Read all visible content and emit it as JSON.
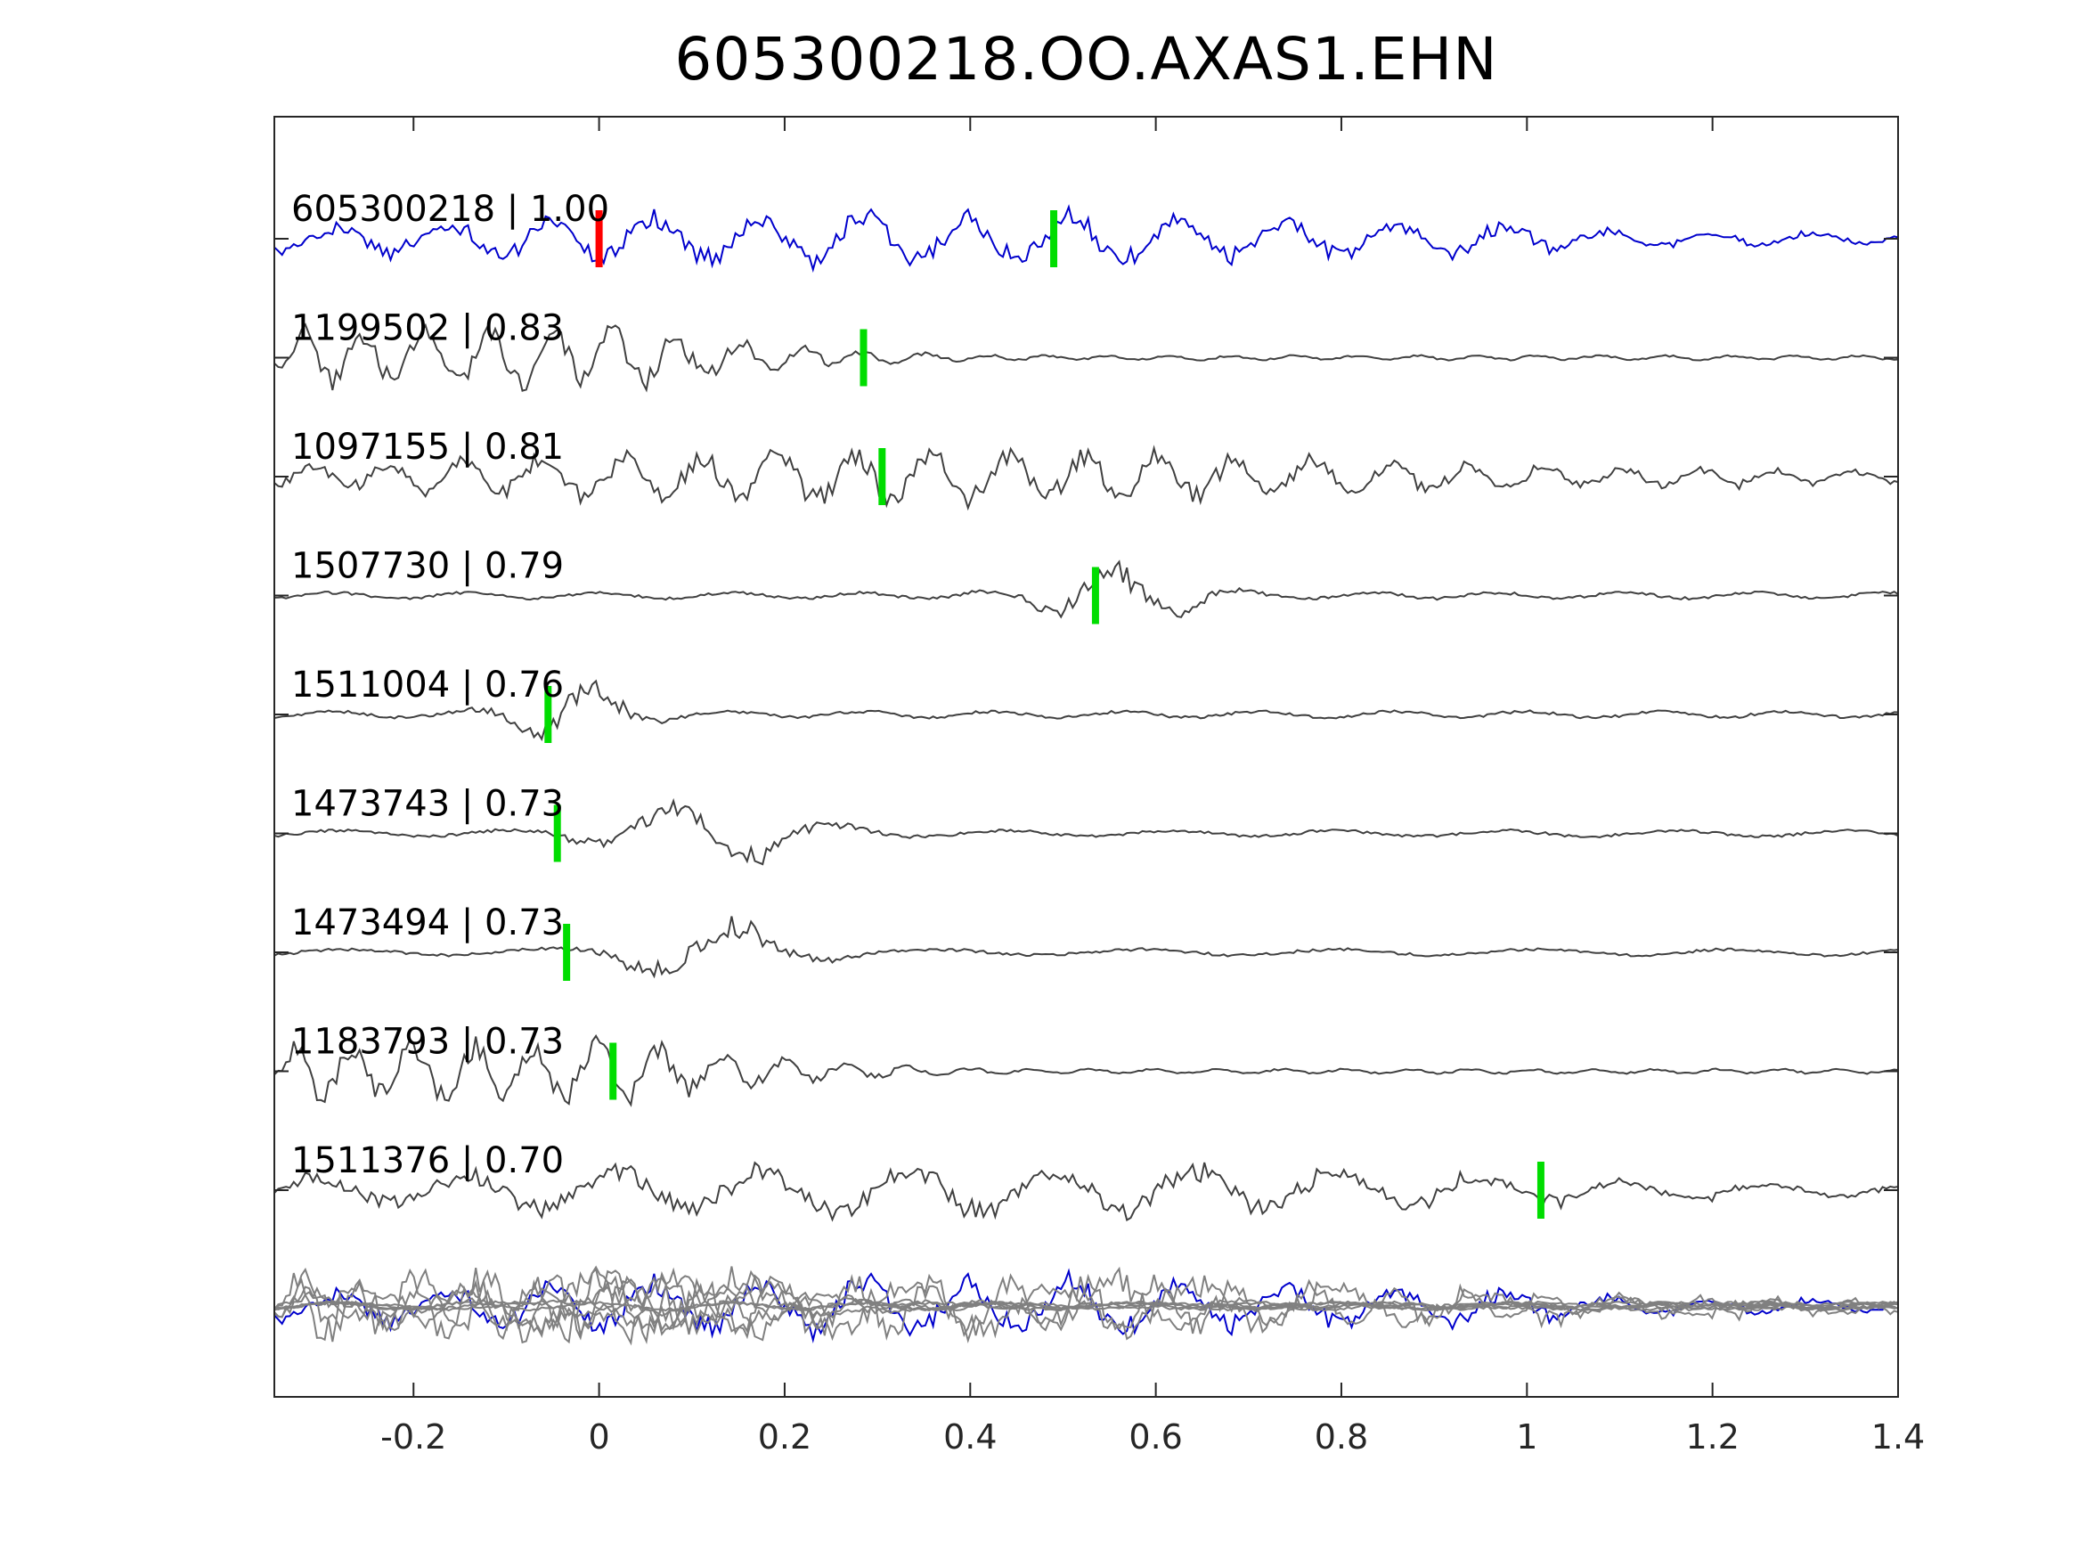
{
  "chart_data": {
    "type": "line",
    "title": "605300218.OO.AXAS1.EHN",
    "xlabel": "",
    "ylabel": "",
    "xlim": [
      -0.35,
      1.4
    ],
    "xticks": [
      -0.2,
      0,
      0.2,
      0.4,
      0.6,
      0.8,
      1,
      1.2,
      1.4
    ],
    "xtick_labels": [
      "-0.2",
      "0",
      "0.2",
      "0.4",
      "0.6",
      "0.8",
      "1",
      "1.2",
      "1.4"
    ],
    "grid": false,
    "colors": {
      "template": "#0000cc",
      "trace": "#404040",
      "overlay": "#808080",
      "reference_pick": "#ff0000",
      "pick": "#00dd00",
      "axes": "#262626"
    },
    "traces": [
      {
        "label": "605300218 | 1.00",
        "event_id": "605300218",
        "cc": "1.00",
        "template": true,
        "reference_pick_x": 0.0,
        "pick_x": 0.49
      },
      {
        "label": "1199502 | 0.83",
        "event_id": "1199502",
        "cc": "0.83",
        "pick_x": 0.285
      },
      {
        "label": "1097155 | 0.81",
        "event_id": "1097155",
        "cc": "0.81",
        "pick_x": 0.305
      },
      {
        "label": "1507730 | 0.79",
        "event_id": "1507730",
        "cc": "0.79",
        "pick_x": 0.535
      },
      {
        "label": "1511004 | 0.76",
        "event_id": "1511004",
        "cc": "0.76",
        "pick_x": -0.055
      },
      {
        "label": "1473743 | 0.73",
        "event_id": "1473743",
        "cc": "0.73",
        "pick_x": -0.045
      },
      {
        "label": "1473494 | 0.73",
        "event_id": "1473494",
        "cc": "0.73",
        "pick_x": -0.035
      },
      {
        "label": "1183793 | 0.73",
        "event_id": "1183793",
        "cc": "0.73",
        "pick_x": 0.015
      },
      {
        "label": "1511376 | 0.70",
        "event_id": "1511376",
        "cc": "0.70",
        "pick_x": 1.015
      }
    ],
    "stack": "all traces overlaid, template in blue"
  }
}
